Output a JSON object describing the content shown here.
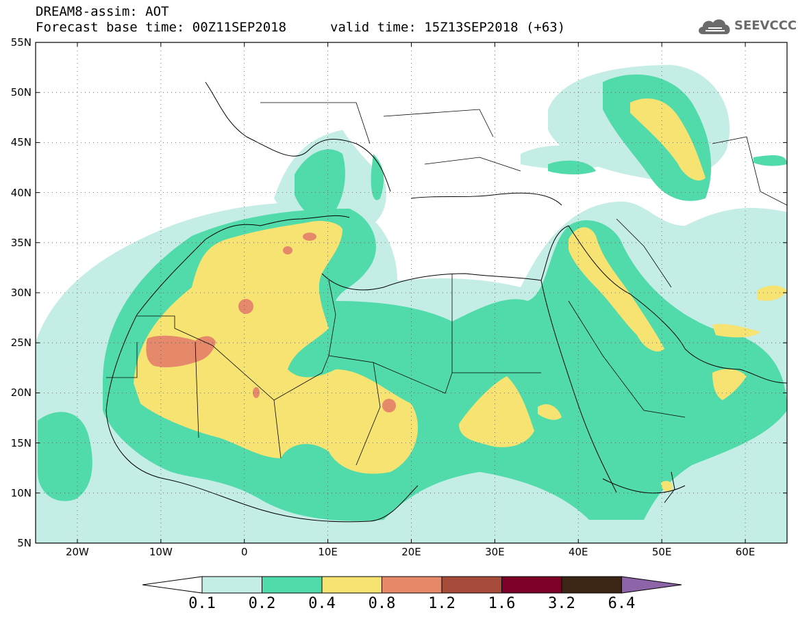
{
  "header": {
    "title": "DREAM8-assim: AOT",
    "base_time": "Forecast base time: 00Z11SEP2018",
    "valid_time": "valid time: 15Z13SEP2018 (+63)",
    "logo_text": "SEEVCCC",
    "logo_icon": "cloud-icon"
  },
  "map": {
    "lon_range": [
      -25,
      65
    ],
    "lat_range": [
      5,
      55
    ],
    "y_ticks": [
      "55N",
      "50N",
      "45N",
      "40N",
      "35N",
      "30N",
      "25N",
      "20N",
      "15N",
      "10N",
      "5N"
    ],
    "x_ticks": [
      "20W",
      "10W",
      "0",
      "10E",
      "20E",
      "30E",
      "40E",
      "50E",
      "60E"
    ],
    "grid": "dotted"
  },
  "colorbar": {
    "labels": [
      "0.1",
      "0.2",
      "0.4",
      "0.8",
      "1.2",
      "1.6",
      "3.2",
      "6.4"
    ],
    "colors": [
      "#ffffff",
      "#c4ede6",
      "#52dbaa",
      "#f6e372",
      "#e5896a",
      "#a64b3a",
      "#7d0026",
      "#3b2615",
      "#8e64a8"
    ]
  }
}
